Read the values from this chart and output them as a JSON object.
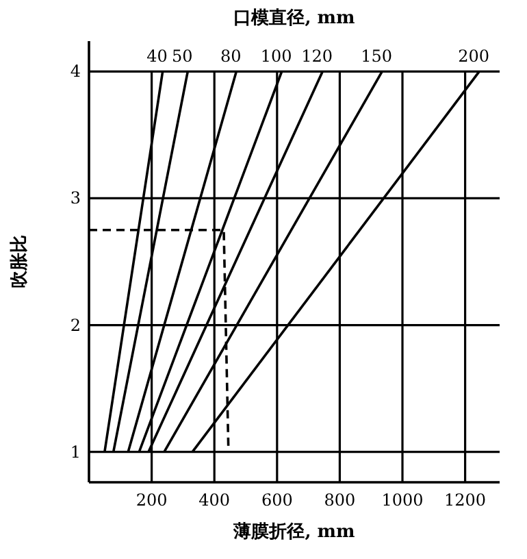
{
  "chart_data": {
    "type": "line",
    "title": "口模直径, mm",
    "xlabel": "薄膜折径, mm",
    "ylabel": "吹胀比",
    "xlim": [
      0,
      1310
    ],
    "ylim": [
      0.76,
      4.24
    ],
    "xticks": [
      200,
      400,
      600,
      800,
      1000,
      1200
    ],
    "yticks": [
      1,
      2,
      3,
      4
    ],
    "grid": true,
    "series": [
      {
        "name": "40",
        "color": "#000000",
        "x": [
          50,
          235
        ],
        "values": [
          1,
          4
        ]
      },
      {
        "name": "50",
        "color": "#000000",
        "x": [
          78,
          315
        ],
        "values": [
          1,
          4
        ]
      },
      {
        "name": "80",
        "color": "#000000",
        "x": [
          125,
          470
        ],
        "values": [
          1,
          4
        ]
      },
      {
        "name": "100",
        "color": "#000000",
        "x": [
          160,
          615
        ],
        "values": [
          1,
          4
        ]
      },
      {
        "name": "120",
        "color": "#000000",
        "x": [
          190,
          745
        ],
        "values": [
          1,
          4
        ]
      },
      {
        "name": "150",
        "color": "#000000",
        "x": [
          240,
          935
        ],
        "values": [
          1,
          4
        ]
      },
      {
        "name": "200",
        "color": "#000000",
        "x": [
          330,
          1245
        ],
        "values": [
          1,
          4
        ]
      },
      {
        "color": "#000000",
        "line_style": "dashed",
        "x": [
          0,
          430,
          445
        ],
        "values": [
          2.75,
          2.75,
          1
        ]
      }
    ]
  }
}
